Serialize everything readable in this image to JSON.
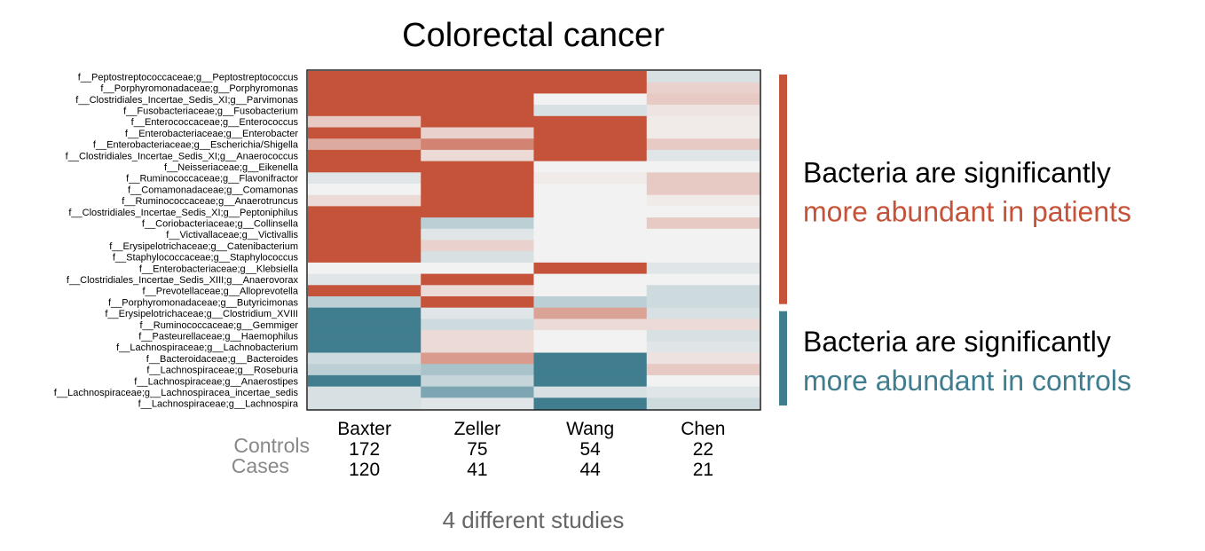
{
  "chart_data": {
    "type": "heatmap",
    "title": "Colorectal cancer",
    "caption": "4 different studies",
    "colors": {
      "patients": "#c4533a",
      "controls": "#3f7d8f",
      "neutral": "#f2f2f2",
      "frame": "#222222"
    },
    "value_range": [
      -1,
      1
    ],
    "columns": [
      "Baxter",
      "Zeller",
      "Wang",
      "Chen"
    ],
    "counts": {
      "controls_label": "Controls",
      "cases_label": "Cases",
      "controls": [
        "172",
        "75",
        "54",
        "22"
      ],
      "cases": [
        "120",
        "41",
        "44",
        "21"
      ]
    },
    "rows": [
      "f__Peptostreptococcaceae;g__Peptostreptococcus",
      "f__Porphyromonadaceae;g__Porphyromonas",
      "f__Clostridiales_Incertae_Sedis_XI;g__Parvimonas",
      "f__Fusobacteriaceae;g__Fusobacterium",
      "f__Enterococcaceae;g__Enterococcus",
      "f__Enterobacteriaceae;g__Enterobacter",
      "f__Enterobacteriaceae;g__Escherichia/Shigella",
      "f__Clostridiales_Incertae_Sedis_XI;g__Anaerococcus",
      "f__Neisseriaceae;g__Eikenella",
      "f__Ruminococcaceae;g__Flavonifractor",
      "f__Comamonadaceae;g__Comamonas",
      "f__Ruminococcaceae;g__Anaerotruncus",
      "f__Clostridiales_Incertae_Sedis_XI;g__Peptoniphilus",
      "f__Coriobacteriaceae;g__Collinsella",
      "f__Victivallaceae;g__Victivallis",
      "f__Erysipelotrichaceae;g__Catenibacterium",
      "f__Staphylococcaceae;g__Staphylococcus",
      "f__Enterobacteriaceae;g__Klebsiella",
      "f__Clostridiales_Incertae_Sedis_XIII;g__Anaerovorax",
      "f__Prevotellaceae;g__Alloprevotella",
      "f__Porphyromonadaceae;g__Butyricimonas",
      "f__Erysipelotrichaceae;g__Clostridium_XVIII",
      "f__Ruminococcaceae;g__Gemmiger",
      "f__Pasteurellaceae;g__Haemophilus",
      "f__Lachnospiraceae;g__Lachnobacterium",
      "f__Bacteroidaceae;g__Bacteroides",
      "f__Lachnospiraceae;g__Roseburia",
      "f__Lachnospiraceae;g__Anaerostipes",
      "f__Lachnospiraceae;g__Lachnospiracea_incertae_sedis",
      "f__Lachnospiraceae;g__Lachnospira"
    ],
    "values": [
      [
        1,
        1,
        1,
        -0.15
      ],
      [
        1,
        1,
        1,
        0.2
      ],
      [
        1,
        1,
        0,
        0.25
      ],
      [
        1,
        1,
        -0.15,
        0.08
      ],
      [
        0.25,
        1,
        1,
        0.05
      ],
      [
        1,
        0.2,
        1,
        0.05
      ],
      [
        0.45,
        0.7,
        1,
        0.25
      ],
      [
        1,
        0.15,
        1,
        -0.1
      ],
      [
        1,
        1,
        0,
        0
      ],
      [
        -0.1,
        1,
        0.05,
        0.25
      ],
      [
        0,
        1,
        0,
        0.25
      ],
      [
        0.15,
        1,
        0,
        0.05
      ],
      [
        1,
        1,
        0,
        0
      ],
      [
        1,
        -0.3,
        0,
        0.25
      ],
      [
        1,
        -0.1,
        0,
        0
      ],
      [
        1,
        0.2,
        0,
        0
      ],
      [
        1,
        -0.15,
        0,
        0
      ],
      [
        0,
        0,
        1,
        -0.1
      ],
      [
        -0.1,
        1,
        0,
        0
      ],
      [
        1,
        0.15,
        0,
        -0.2
      ],
      [
        -0.3,
        1,
        -0.3,
        -0.2
      ],
      [
        -1,
        -0.1,
        0.5,
        -0.15
      ],
      [
        -1,
        -0.2,
        0.15,
        0.15
      ],
      [
        -1,
        0.15,
        0,
        -0.15
      ],
      [
        -1,
        0.15,
        0,
        -0.1
      ],
      [
        -0.2,
        0.55,
        -1,
        0.1
      ],
      [
        -0.3,
        -0.4,
        -1,
        0.25
      ],
      [
        -1,
        -0.25,
        -1,
        0
      ],
      [
        -0.15,
        -0.65,
        -0.15,
        -0.1
      ],
      [
        -0.15,
        -0.1,
        -1,
        -0.2
      ]
    ],
    "annotations": [
      {
        "line1": "Bacteria are significantly",
        "line2": "more abundant in patients",
        "color": "#c4533a",
        "row_start": 0,
        "row_end": 20
      },
      {
        "line1": "Bacteria are significantly",
        "line2": "more abundant in controls",
        "color": "#3f7d8f",
        "row_start": 21,
        "row_end": 29
      }
    ]
  }
}
